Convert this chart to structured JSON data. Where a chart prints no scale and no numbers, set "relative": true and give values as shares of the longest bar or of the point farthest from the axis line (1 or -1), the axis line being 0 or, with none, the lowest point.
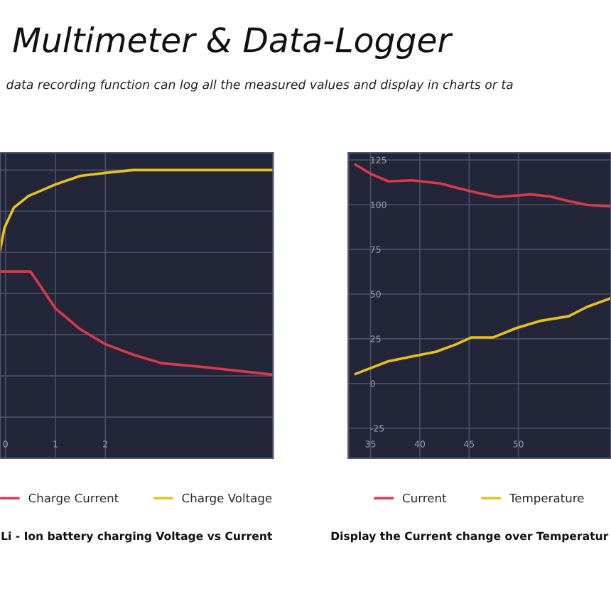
{
  "chart_data": [
    {
      "type": "line",
      "title": "Multimeter & Data-Logger",
      "subtitle": "data recording function can log all the measured values and display in charts or ta",
      "relative": true,
      "tick_labels": "x",
      "xlim": [
        -0.11,
        5.36
      ],
      "xticks": [
        0,
        1,
        2
      ],
      "grid": true,
      "legend": "bottom",
      "annotations": [
        "Li - Ion battery charging Voltage vs Current"
      ],
      "series": [
        {
          "name": "Charge Current",
          "color": "#d93a4a",
          "x": [
            -0.11,
            0.5,
            0.65,
            1.0,
            1.5,
            2.0,
            2.55,
            3.12,
            3.98,
            5.36
          ],
          "values": [
            0.648,
            0.648,
            0.61,
            0.52,
            0.447,
            0.396,
            0.36,
            0.33,
            0.316,
            0.29
          ]
        },
        {
          "name": "Charge Voltage",
          "color": "#e8c020",
          "x": [
            -0.11,
            -0.02,
            0.17,
            0.46,
            1.0,
            1.5,
            2.0,
            2.55,
            5.36
          ],
          "values": [
            0.72,
            0.8,
            0.87,
            0.91,
            0.95,
            0.98,
            0.99,
            1,
            1
          ]
        }
      ]
    },
    {
      "type": "line",
      "xlim": [
        32.74,
        59.4
      ],
      "xticks": [
        35,
        40,
        45,
        50
      ],
      "ylim": [
        -41.8,
        129
      ],
      "yticks": [
        125,
        100,
        75,
        50,
        25,
        0,
        -25
      ],
      "grid": true,
      "legend": "bottom",
      "annotations": [
        "Display the Current change over Temperatur"
      ],
      "series": [
        {
          "name": "Current",
          "color": "#d93a4a",
          "x": [
            33.46,
            35.1,
            36.8,
            39.2,
            42.1,
            44.0,
            45.96,
            47.9,
            51.25,
            53.2,
            55.1,
            57.0,
            59.4
          ],
          "values": [
            122.4,
            117,
            113,
            113.6,
            111.8,
            109,
            106.5,
            104.3,
            105.7,
            104.6,
            102,
            99.8,
            99
          ]
        },
        {
          "name": "Temperature",
          "color": "#e8c020",
          "x": [
            33.46,
            36.8,
            39.2,
            41.6,
            43.6,
            45.2,
            47.4,
            49.8,
            52.2,
            55.1,
            57.0,
            59.4
          ],
          "values": [
            5.3,
            12.4,
            15.1,
            17.7,
            21.7,
            25.7,
            25.7,
            31,
            35,
            37.6,
            42.9,
            47.7
          ]
        }
      ]
    }
  ]
}
